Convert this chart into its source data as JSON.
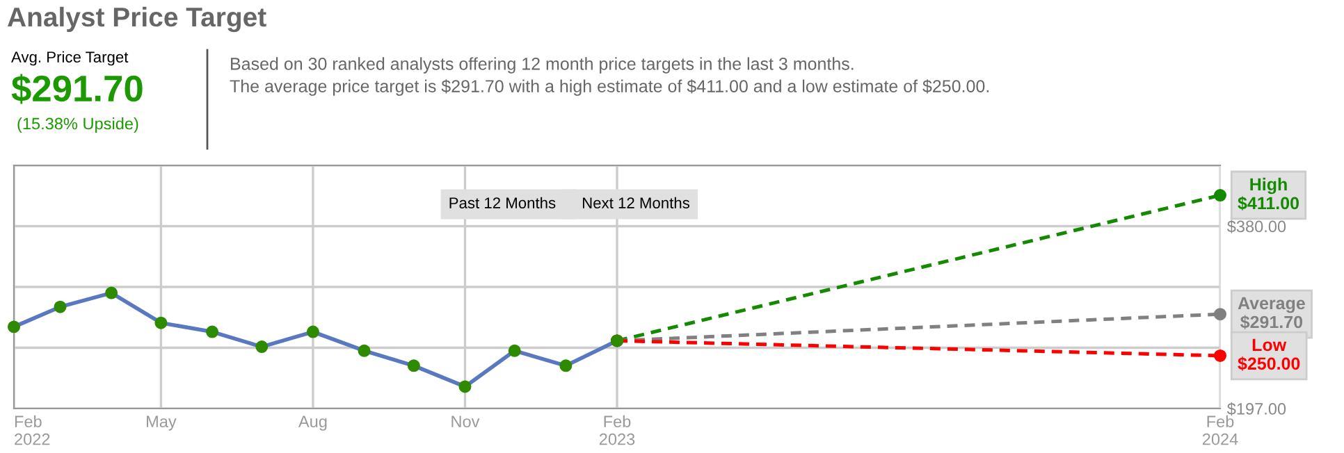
{
  "chart_data": {
    "type": "line",
    "title": "Analyst Price Target",
    "annotations": [
      "Avg. Price Target",
      "$291.70",
      "(15.38% Upside)",
      "Based on 30 ranked analysts offering 12 month price targets in the last 3 months.",
      "The average price target is $291.70 with a high estimate of $411.00 and a low estimate of $250.00.",
      "Past 12 Months",
      "Next 12 Months"
    ],
    "series": [
      {
        "color": "#5a78c0",
        "colors": [
          "#2e8b00",
          "#2e8b00",
          "#2e8b00",
          "#2e8b00",
          "#2e8b00",
          "#2e8b00",
          "#2e8b00",
          "#2e8b00",
          "#2e8b00",
          "#2e8b00",
          "#2e8b00",
          "#2e8b00",
          "#2e8b00"
        ],
        "marker": "circle",
        "line_style": "solid",
        "x": [
          "2022-02",
          "2022-03",
          "2022-04",
          "2022-05",
          "2022-06",
          "2022-07",
          "2022-08",
          "2022-09",
          "2022-10",
          "2022-11",
          "2022-12",
          "2023-01",
          "2023-02"
        ],
        "values": [
          279,
          299,
          313,
          283,
          274,
          259,
          274,
          255,
          240,
          219,
          255,
          240,
          265
        ]
      },
      {
        "name": "High",
        "color": "#138a00",
        "marker": "circle",
        "line_style": "dashed",
        "x": [
          "2023-02",
          "2024-02"
        ],
        "values": [
          265,
          411
        ],
        "value_labels": [
          null,
          "$411.00"
        ]
      },
      {
        "name": "Average",
        "color": "#808080",
        "marker": "circle",
        "line_style": "dashed",
        "x": [
          "2023-02",
          "2024-02"
        ],
        "values": [
          265,
          291.7
        ],
        "value_labels": [
          null,
          "$291.70"
        ]
      },
      {
        "name": "Low",
        "color": "#ff0000",
        "marker": "circle",
        "line_style": "dashed",
        "x": [
          "2023-02",
          "2024-02"
        ],
        "values": [
          265,
          250
        ],
        "value_labels": [
          null,
          "$250.00"
        ]
      }
    ],
    "xlim": [
      "2022-02",
      "2024-02"
    ],
    "xticks": [
      {
        "value": "2022-02",
        "label": "Feb\n2022"
      },
      {
        "value": "2022-05",
        "label": "May"
      },
      {
        "value": "2022-08",
        "label": "Aug"
      },
      {
        "value": "2022-11",
        "label": "Nov"
      },
      {
        "value": "2023-02",
        "label": "Feb\n2023"
      },
      {
        "value": "2024-02",
        "label": "Feb\n2024"
      }
    ],
    "ylim": [
      197,
      441
    ],
    "yticks": [
      {
        "value": 197,
        "label": "$197.00"
      },
      {
        "value": 258,
        "label": null
      },
      {
        "value": 319,
        "label": null
      },
      {
        "value": 380,
        "label": "$380.00"
      },
      {
        "value": 441,
        "label": null
      }
    ],
    "grid": true
  }
}
